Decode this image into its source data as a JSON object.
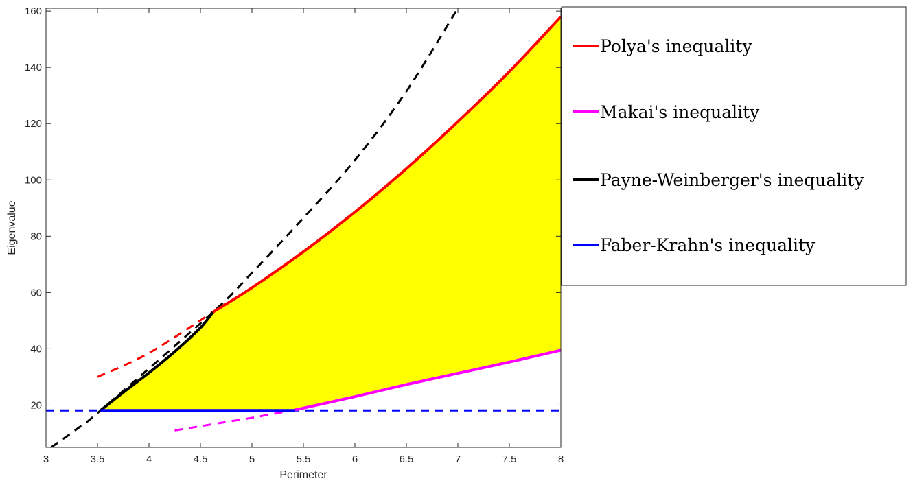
{
  "chart_data": {
    "type": "line",
    "xlabel": "Perimeter",
    "ylabel": "Eigenvalue",
    "xlim": [
      3,
      8
    ],
    "ylim": [
      5,
      161
    ],
    "xticks": [
      3,
      3.5,
      4,
      4.5,
      5,
      5.5,
      6,
      6.5,
      7,
      7.5,
      8
    ],
    "xtick_labels": [
      "3",
      "3.5",
      "4",
      "4.5",
      "5",
      "5.5",
      "6",
      "6.5",
      "7",
      "7.5",
      "8"
    ],
    "yticks": [
      20,
      40,
      60,
      80,
      100,
      120,
      140,
      160
    ],
    "ytick_labels": [
      "20",
      "40",
      "60",
      "80",
      "100",
      "120",
      "140",
      "160"
    ],
    "grid": false,
    "legend_position": "right",
    "series": [
      {
        "name": "Polya's inequality",
        "color": "#ff0000",
        "solid": [
          [
            4.62,
            53.0
          ],
          [
            5.0,
            61.7
          ],
          [
            5.5,
            74.5
          ],
          [
            6.0,
            88.6
          ],
          [
            6.5,
            104.0
          ],
          [
            7.0,
            120.7
          ],
          [
            7.5,
            138.5
          ],
          [
            8.0,
            158.0
          ]
        ],
        "dashed": [
          [
            3.5,
            30.0
          ],
          [
            4.0,
            38.5
          ],
          [
            4.62,
            53.0
          ]
        ]
      },
      {
        "name": "Makai's inequality",
        "color": "#ff00ff",
        "solid": [
          [
            5.42,
            18.3
          ],
          [
            6.0,
            23.0
          ],
          [
            6.5,
            27.3
          ],
          [
            7.0,
            31.3
          ],
          [
            7.5,
            35.3
          ],
          [
            8.0,
            39.5
          ]
        ],
        "dashed": [
          [
            4.25,
            11.0
          ],
          [
            4.75,
            14.0
          ],
          [
            5.0,
            15.5
          ],
          [
            5.42,
            18.3
          ]
        ]
      },
      {
        "name": "Payne-Weinberger's inequality",
        "color": "#000000",
        "solid": [
          [
            3.53,
            18.1
          ],
          [
            3.75,
            24.5
          ],
          [
            4.0,
            31.5
          ],
          [
            4.25,
            39.0
          ],
          [
            4.5,
            47.5
          ],
          [
            4.62,
            53.0
          ]
        ],
        "dashed": [
          [
            3.05,
            5.0
          ],
          [
            3.3,
            11.5
          ],
          [
            3.53,
            18.1
          ],
          [
            4.62,
            53.0
          ],
          [
            5.0,
            67.0
          ],
          [
            5.5,
            86.5
          ],
          [
            6.0,
            107.0
          ],
          [
            6.5,
            131.5
          ],
          [
            7.0,
            161.0
          ]
        ]
      },
      {
        "name": "Faber-Krahn's inequality",
        "color": "#0000ff",
        "solid": [
          [
            3.53,
            18.1
          ],
          [
            5.42,
            18.1
          ]
        ],
        "dashed": [
          [
            3.0,
            18.1
          ],
          [
            8.0,
            18.1
          ]
        ]
      }
    ],
    "feasible_region_color": "#ffff00"
  }
}
